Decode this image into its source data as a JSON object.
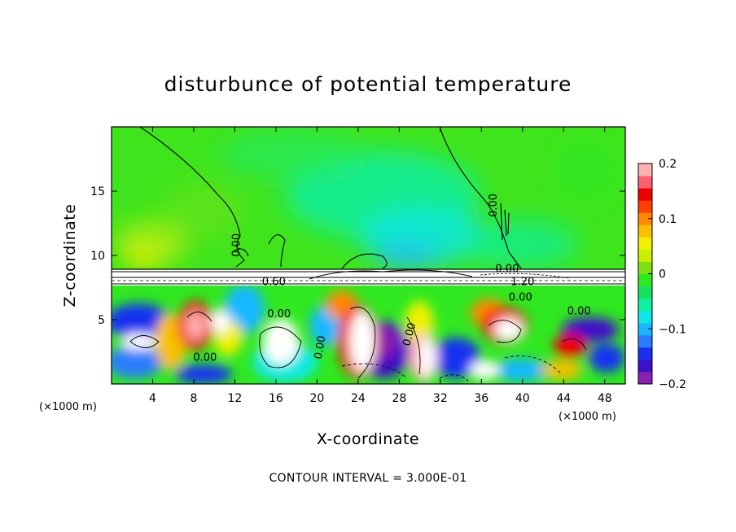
{
  "chart_data": {
    "type": "heatmap",
    "title": "disturbunce of potential temperature",
    "xlabel": "X-coordinate",
    "ylabel": "Z-coordinate",
    "x_unit": "(×1000 m)",
    "y_unit": "(×1000 m)",
    "xlim": [
      0,
      50
    ],
    "ylim": [
      0,
      20
    ],
    "x_ticks": [
      4,
      8,
      12,
      16,
      20,
      24,
      28,
      32,
      36,
      40,
      44,
      48
    ],
    "y_ticks": [
      5,
      10,
      15
    ],
    "colorbar": {
      "range": [
        -0.2,
        0.2
      ],
      "ticks": [
        {
          "value": 0.2,
          "label": "0.2"
        },
        {
          "value": 0.1,
          "label": "0.1"
        },
        {
          "value": 0,
          "label": "0"
        },
        {
          "value": -0.1,
          "label": "−0.1"
        },
        {
          "value": -0.2,
          "label": "−0.2"
        }
      ],
      "colors": [
        "#8a1fb0",
        "#4010c8",
        "#1830f0",
        "#2a7cff",
        "#18b8ff",
        "#10e8e8",
        "#10f0a0",
        "#18e060",
        "#30e820",
        "#7ee010",
        "#c8f000",
        "#f0f000",
        "#f8c000",
        "#ff8800",
        "#ff4000",
        "#ee0000",
        "#ff6070",
        "#ffb0b0"
      ]
    },
    "contour_labels": [
      {
        "x": 12.5,
        "y": 10.8,
        "text": "0.00",
        "rotate": -90
      },
      {
        "x": 37.5,
        "y": 13.9,
        "text": "0.00",
        "rotate": -90
      },
      {
        "x": 15.8,
        "y": 7.7,
        "text": "0.60",
        "rotate": 0
      },
      {
        "x": 16.3,
        "y": 5.2,
        "text": "0.00",
        "rotate": 0
      },
      {
        "x": 9.1,
        "y": 1.8,
        "text": "0.00",
        "rotate": 0
      },
      {
        "x": 20.6,
        "y": 2.8,
        "text": "0.00",
        "rotate": -80
      },
      {
        "x": 29.3,
        "y": 3.8,
        "text": "0.00",
        "rotate": -75
      },
      {
        "x": 38.5,
        "y": 8.7,
        "text": "0.00",
        "rotate": 0
      },
      {
        "x": 40.0,
        "y": 7.7,
        "text": "1.20",
        "rotate": 0
      },
      {
        "x": 39.8,
        "y": 6.5,
        "text": "0.00",
        "rotate": 0
      },
      {
        "x": 45.5,
        "y": 5.4,
        "text": "0.00",
        "rotate": 0
      }
    ],
    "footnote": "CONTOUR INTERVAL = 3.000E-01"
  }
}
